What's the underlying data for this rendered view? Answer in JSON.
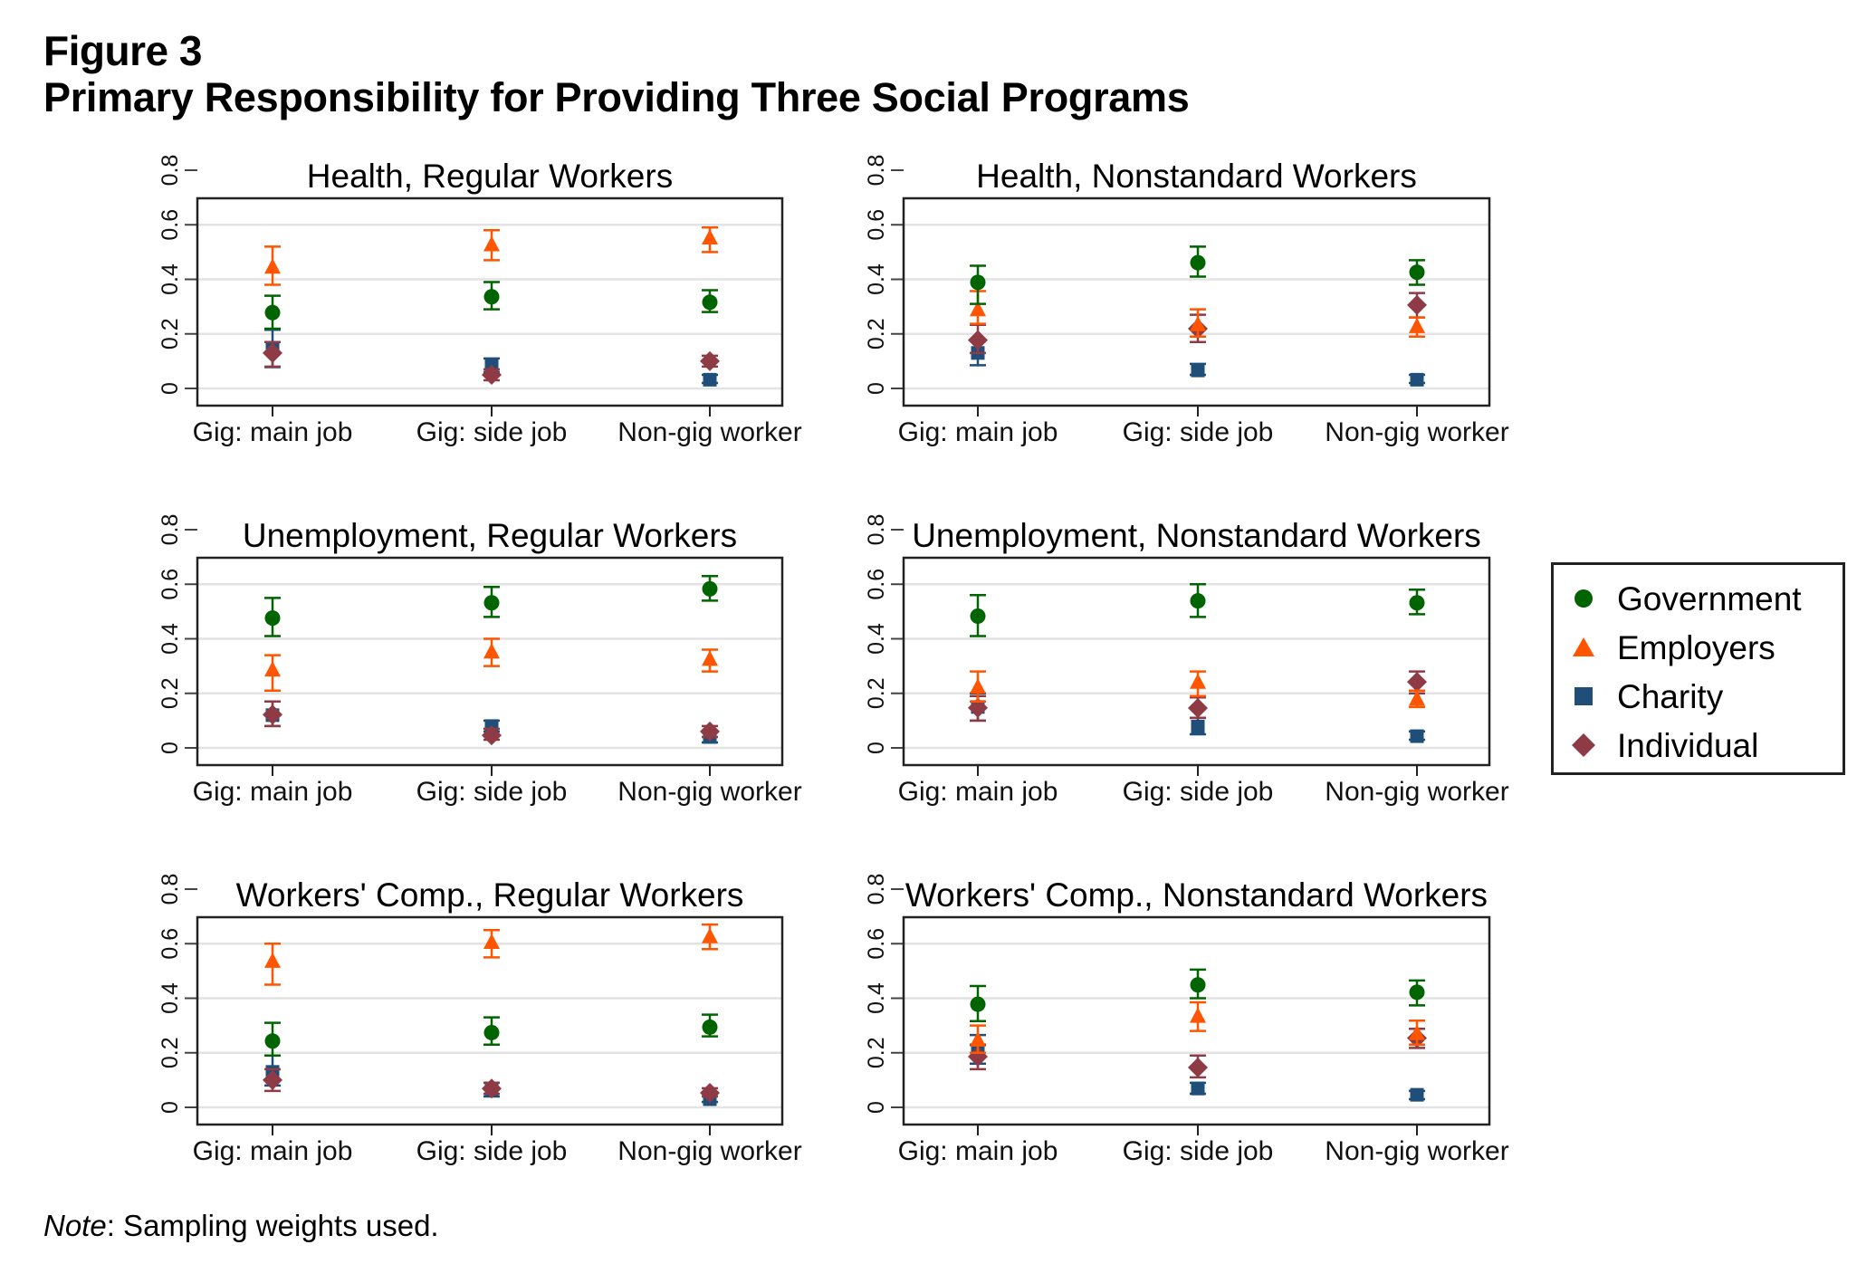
{
  "figure": {
    "label": "Figure 3",
    "title": "Primary Responsibility for Providing Three Social Programs",
    "note_prefix": "Note",
    "note_text": ": Sampling weights used."
  },
  "chart_data": {
    "type": "scatter",
    "subtype": "dot-plot-with-confidence-intervals",
    "title": "Primary Responsibility for Providing Three Social Programs",
    "categories": [
      "Gig: main job",
      "Gig: side job",
      "Non-gig worker"
    ],
    "yticks": [
      0,
      0.2,
      0.4,
      0.6,
      0.8
    ],
    "ytick_labels": [
      "0",
      "0.2",
      "0.4",
      "0.6",
      "0.8"
    ],
    "ylim": [
      -0.1,
      0.88
    ],
    "grid": true,
    "legend": {
      "placement": "right",
      "entries": [
        {
          "name": "Government",
          "symbol": "circle",
          "color": "#006400"
        },
        {
          "name": "Employers",
          "symbol": "triangle",
          "color": "#ff5500"
        },
        {
          "name": "Charity",
          "symbol": "square",
          "color": "#1f4e79"
        },
        {
          "name": "Individual",
          "symbol": "diamond",
          "color": "#8f3b46"
        }
      ]
    },
    "panels": [
      {
        "title": "Health, Regular Workers",
        "series": [
          {
            "name": "Government",
            "values": [
              0.278,
              0.336,
              0.316
            ],
            "lo": [
              0.219,
              0.29,
              0.28
            ],
            "hi": [
              0.34,
              0.39,
              0.36
            ]
          },
          {
            "name": "Employers",
            "values": [
              0.444,
              0.526,
              0.551
            ],
            "lo": [
              0.38,
              0.47,
              0.5
            ],
            "hi": [
              0.52,
              0.58,
              0.59
            ]
          },
          {
            "name": "Charity",
            "values": [
              0.145,
              0.087,
              0.032
            ],
            "lo": [
              0.078,
              0.06,
              0.02
            ],
            "hi": [
              0.215,
              0.11,
              0.05
            ]
          },
          {
            "name": "Individual",
            "values": [
              0.13,
              0.05,
              0.1
            ],
            "lo": [
              0.08,
              0.03,
              0.08
            ],
            "hi": [
              0.17,
              0.07,
              0.12
            ]
          }
        ]
      },
      {
        "title": "Health, Nonstandard Workers",
        "series": [
          {
            "name": "Government",
            "values": [
              0.389,
              0.461,
              0.426
            ],
            "lo": [
              0.31,
              0.41,
              0.38
            ],
            "hi": [
              0.45,
              0.52,
              0.47
            ]
          },
          {
            "name": "Employers",
            "values": [
              0.288,
              0.233,
              0.226
            ],
            "lo": [
              0.237,
              0.19,
              0.19
            ],
            "hi": [
              0.357,
              0.29,
              0.26
            ]
          },
          {
            "name": "Charity",
            "values": [
              0.13,
              0.066,
              0.032
            ],
            "lo": [
              0.085,
              0.05,
              0.02
            ],
            "hi": [
              0.18,
              0.09,
              0.05
            ]
          },
          {
            "name": "Individual",
            "values": [
              0.177,
              0.219,
              0.306
            ],
            "lo": [
              0.13,
              0.17,
              0.26
            ],
            "hi": [
              0.233,
              0.27,
              0.35
            ]
          }
        ]
      },
      {
        "title": "Unemployment, Regular Workers",
        "series": [
          {
            "name": "Government",
            "values": [
              0.476,
              0.532,
              0.583
            ],
            "lo": [
              0.41,
              0.48,
              0.54
            ],
            "hi": [
              0.55,
              0.59,
              0.63
            ]
          },
          {
            "name": "Employers",
            "values": [
              0.285,
              0.351,
              0.324
            ],
            "lo": [
              0.21,
              0.3,
              0.28
            ],
            "hi": [
              0.34,
              0.4,
              0.36
            ]
          },
          {
            "name": "Charity",
            "values": [
              0.12,
              0.08,
              0.04
            ],
            "lo": [
              0.08,
              0.06,
              0.02
            ],
            "hi": [
              0.17,
              0.1,
              0.06
            ]
          },
          {
            "name": "Individual",
            "values": [
              0.122,
              0.046,
              0.06
            ],
            "lo": [
              0.08,
              0.03,
              0.04
            ],
            "hi": [
              0.17,
              0.07,
              0.08
            ]
          }
        ]
      },
      {
        "title": "Unemployment, Nonstandard Workers",
        "series": [
          {
            "name": "Government",
            "values": [
              0.483,
              0.539,
              0.532
            ],
            "lo": [
              0.41,
              0.48,
              0.49
            ],
            "hi": [
              0.56,
              0.6,
              0.58
            ]
          },
          {
            "name": "Employers",
            "values": [
              0.222,
              0.24,
              0.178
            ],
            "lo": [
              0.17,
              0.19,
              0.15
            ],
            "hi": [
              0.28,
              0.28,
              0.21
            ]
          },
          {
            "name": "Charity",
            "values": [
              0.15,
              0.078,
              0.043
            ],
            "lo": [
              0.1,
              0.05,
              0.03
            ],
            "hi": [
              0.2,
              0.11,
              0.06
            ]
          },
          {
            "name": "Individual",
            "values": [
              0.147,
              0.146,
              0.242
            ],
            "lo": [
              0.1,
              0.11,
              0.2
            ],
            "hi": [
              0.19,
              0.185,
              0.28
            ]
          }
        ]
      },
      {
        "title": "Workers' Comp., Regular Workers",
        "series": [
          {
            "name": "Government",
            "values": [
              0.243,
              0.274,
              0.294
            ],
            "lo": [
              0.19,
              0.23,
              0.26
            ],
            "hi": [
              0.31,
              0.33,
              0.34
            ]
          },
          {
            "name": "Employers",
            "values": [
              0.535,
              0.604,
              0.625
            ],
            "lo": [
              0.45,
              0.55,
              0.58
            ],
            "hi": [
              0.6,
              0.65,
              0.67
            ]
          },
          {
            "name": "Charity",
            "values": [
              0.13,
              0.065,
              0.03
            ],
            "lo": [
              0.08,
              0.04,
              0.02
            ],
            "hi": [
              0.19,
              0.09,
              0.05
            ]
          },
          {
            "name": "Individual",
            "values": [
              0.1,
              0.069,
              0.053
            ],
            "lo": [
              0.06,
              0.05,
              0.04
            ],
            "hi": [
              0.14,
              0.09,
              0.07
            ]
          }
        ]
      },
      {
        "title": "Workers' Comp., Nonstandard Workers",
        "series": [
          {
            "name": "Government",
            "values": [
              0.378,
              0.449,
              0.422
            ],
            "lo": [
              0.316,
              0.4,
              0.374
            ],
            "hi": [
              0.445,
              0.505,
              0.465
            ]
          },
          {
            "name": "Employers",
            "values": [
              0.246,
              0.333,
              0.27
            ],
            "lo": [
              0.2,
              0.28,
              0.23
            ],
            "hi": [
              0.3,
              0.385,
              0.318
            ]
          },
          {
            "name": "Charity",
            "values": [
              0.21,
              0.069,
              0.046
            ],
            "lo": [
              0.16,
              0.05,
              0.03
            ],
            "hi": [
              0.265,
              0.09,
              0.06
            ]
          },
          {
            "name": "Individual",
            "values": [
              0.186,
              0.146,
              0.254
            ],
            "lo": [
              0.14,
              0.11,
              0.218
            ],
            "hi": [
              0.23,
              0.19,
              0.288
            ]
          }
        ]
      }
    ]
  }
}
